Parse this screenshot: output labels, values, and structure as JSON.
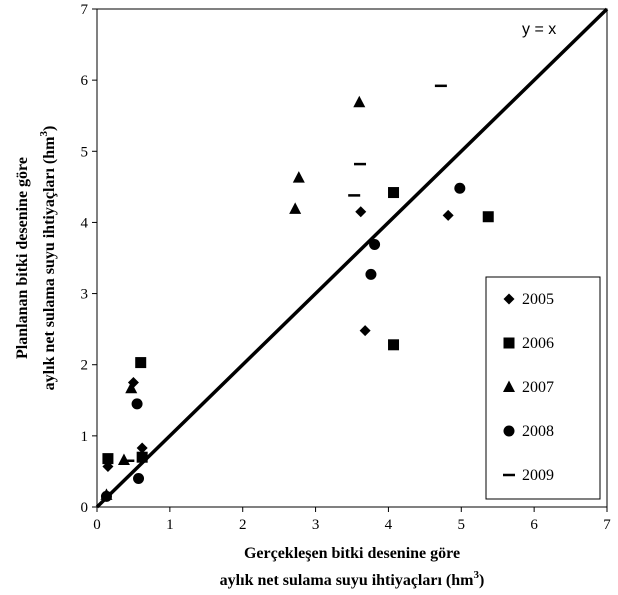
{
  "chart_data": {
    "type": "scatter",
    "title": "",
    "xlabel_line1": "Gerçekleşen bitki desenine göre",
    "xlabel_line2_pre": "aylık net sulama suyu ihtiyaçları (hm",
    "xlabel_line2_sup": "3",
    "xlabel_line2_post": ")",
    "ylabel_line1": "Planlanan bitki desenine göre",
    "ylabel_line2_pre": "aylık net sulama suyu ihtiyaçları (hm",
    "ylabel_line2_sup": "3",
    "ylabel_line2_post": ")",
    "xlim": [
      0,
      7
    ],
    "ylim": [
      0,
      7
    ],
    "xticks": [
      "0",
      "1",
      "2",
      "3",
      "4",
      "5",
      "6",
      "7"
    ],
    "yticks": [
      "0",
      "1",
      "2",
      "3",
      "4",
      "5",
      "6",
      "7"
    ],
    "grid": false,
    "legend_position": "right",
    "reference_line": {
      "label": "y = x",
      "from": [
        0,
        0
      ],
      "to": [
        7,
        7
      ]
    },
    "series": [
      {
        "name": "2005",
        "marker": "diamond",
        "points": [
          [
            0.15,
            0.57
          ],
          [
            0.5,
            1.75
          ],
          [
            0.62,
            0.83
          ],
          [
            3.62,
            4.15
          ],
          [
            3.68,
            2.48
          ],
          [
            4.82,
            4.1
          ]
        ]
      },
      {
        "name": "2006",
        "marker": "square",
        "points": [
          [
            0.15,
            0.68
          ],
          [
            0.6,
            2.03
          ],
          [
            0.62,
            0.7
          ],
          [
            4.07,
            4.42
          ],
          [
            4.07,
            2.28
          ],
          [
            5.37,
            4.08
          ]
        ]
      },
      {
        "name": "2007",
        "marker": "triangle",
        "points": [
          [
            0.13,
            0.17
          ],
          [
            0.37,
            0.66
          ],
          [
            0.47,
            1.67
          ],
          [
            2.72,
            4.19
          ],
          [
            2.77,
            4.63
          ],
          [
            3.6,
            5.69
          ]
        ]
      },
      {
        "name": "2008",
        "marker": "circle",
        "points": [
          [
            0.13,
            0.15
          ],
          [
            0.55,
            1.45
          ],
          [
            0.57,
            0.4
          ],
          [
            3.76,
            3.27
          ],
          [
            3.81,
            3.69
          ],
          [
            4.98,
            4.48
          ]
        ]
      },
      {
        "name": "2009",
        "marker": "dash",
        "points": [
          [
            0.43,
            0.65
          ],
          [
            3.53,
            4.38
          ],
          [
            3.61,
            4.82
          ],
          [
            4.72,
            5.92
          ]
        ]
      }
    ]
  }
}
